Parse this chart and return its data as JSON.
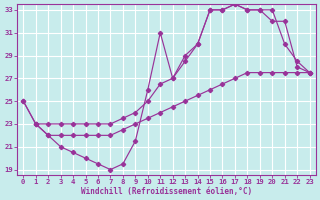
{
  "xlabel": "Windchill (Refroidissement éolien,°C)",
  "bg_color": "#c8ecec",
  "grid_color": "#ffffff",
  "line_color": "#993399",
  "xlim": [
    -0.5,
    23.5
  ],
  "ylim": [
    18.5,
    33.5
  ],
  "xticks": [
    0,
    1,
    2,
    3,
    4,
    5,
    6,
    7,
    8,
    9,
    10,
    11,
    12,
    13,
    14,
    15,
    16,
    17,
    18,
    19,
    20,
    21,
    22,
    23
  ],
  "yticks": [
    19,
    21,
    23,
    25,
    27,
    29,
    31,
    33
  ],
  "line1_x": [
    0,
    1,
    2,
    3,
    4,
    5,
    6,
    7,
    8,
    9,
    10,
    11,
    12,
    13,
    14,
    15,
    16,
    17,
    18,
    19,
    20,
    21,
    22,
    23
  ],
  "line1_y": [
    25,
    23,
    22,
    21,
    20.5,
    20,
    19.5,
    19,
    19.5,
    21.5,
    26,
    31,
    27,
    29,
    30,
    33,
    33,
    33.5,
    33,
    33,
    33,
    30,
    28.5,
    27.5
  ],
  "line2_x": [
    0,
    1,
    2,
    3,
    4,
    5,
    6,
    7,
    8,
    9,
    10,
    11,
    12,
    13,
    14,
    15,
    16,
    17,
    18,
    19,
    20,
    21,
    22,
    23
  ],
  "line2_y": [
    25,
    23,
    23,
    23,
    23,
    23,
    23,
    23,
    23.5,
    24,
    25,
    26.5,
    27,
    28.5,
    30,
    33,
    33,
    33.5,
    33,
    33,
    32,
    32,
    28,
    27.5
  ],
  "line3_x": [
    1,
    2,
    3,
    4,
    5,
    6,
    7,
    8,
    9,
    10,
    11,
    12,
    13,
    14,
    15,
    16,
    17,
    18,
    19,
    20,
    21,
    22,
    23
  ],
  "line3_y": [
    23,
    22,
    22,
    22,
    22,
    22,
    22,
    22.5,
    23,
    23.5,
    24,
    24.5,
    25,
    25.5,
    26,
    26.5,
    27,
    27.5,
    27.5,
    27.5,
    27.5,
    27.5,
    27.5
  ]
}
